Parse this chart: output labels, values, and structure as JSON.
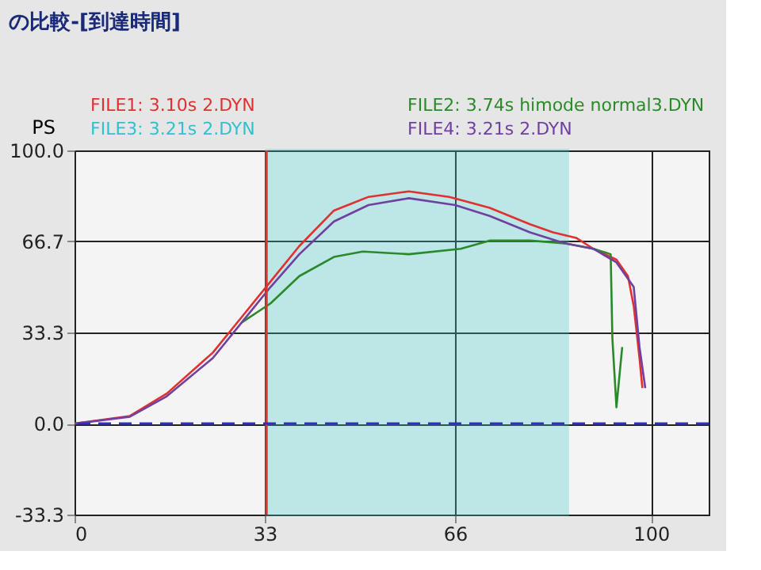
{
  "chart_data": {
    "type": "line",
    "title": "の比較-[到達時間]",
    "ylabel": "PS",
    "xlim": [
      0,
      110
    ],
    "ylim": [
      -33.3,
      100
    ],
    "xticks": [
      0,
      33,
      66,
      100
    ],
    "yticks": [
      {
        "value": -33.3,
        "label": "-33.3"
      },
      {
        "value": 0,
        "label": "0.0"
      },
      {
        "value": 33.3,
        "label": "33.3"
      },
      {
        "value": 66.7,
        "label": "66.7"
      },
      {
        "value": 100,
        "label": "100.0"
      }
    ],
    "grid": true,
    "legend": "top",
    "line_style": "solid",
    "marker": "none",
    "series": [
      {
        "name": "FILE1: 3.10s 2.DYN",
        "color": "#e03030",
        "x": [
          0,
          9.6,
          16,
          24,
          29,
          34,
          39,
          45,
          51,
          58,
          65,
          72,
          79,
          83,
          87,
          90,
          94,
          96,
          97,
          98,
          98.5
        ],
        "values": [
          0,
          2.8,
          11,
          26,
          39,
          52,
          65,
          78,
          83,
          85,
          83,
          79,
          73,
          70,
          68,
          64,
          60,
          54,
          43,
          24,
          13
        ]
      },
      {
        "name": "FILE2: 3.74s himode normal3.DYN",
        "color": "#2a8a2a",
        "x": [
          29,
          34,
          39,
          45,
          50,
          58,
          67,
          72,
          79,
          85,
          90,
          93,
          93.3,
          94,
          95
        ],
        "values": [
          37,
          44,
          54,
          61,
          63,
          62,
          64,
          67,
          67,
          66,
          64,
          62,
          31,
          6,
          28
        ]
      },
      {
        "name": "FILE3: 3.21s 2.DYN",
        "color": "#30c0d0"
      },
      {
        "name": "FILE4: 3.21s 2.DYN",
        "color": "#7040a0",
        "x": [
          0,
          9.6,
          16,
          24,
          29,
          34,
          39,
          45,
          51,
          58,
          66,
          72,
          79,
          85,
          90,
          94,
          97,
          98,
          99
        ],
        "values": [
          0,
          2.5,
          10,
          24,
          37,
          50,
          62,
          74,
          80,
          82.5,
          80,
          76,
          70,
          66,
          64,
          59,
          50,
          28,
          13
        ]
      }
    ],
    "ref_lines": [
      {
        "axis": "x",
        "value": 33.3,
        "color": "#e03030",
        "line_style": "solid"
      },
      {
        "axis": "y",
        "value": 0,
        "color": "#3030c0",
        "line_style": "dashed"
      }
    ],
    "bands": [
      {
        "axis": "x",
        "from": 33.3,
        "to": 85.5,
        "color": "#40c8c8"
      }
    ]
  }
}
